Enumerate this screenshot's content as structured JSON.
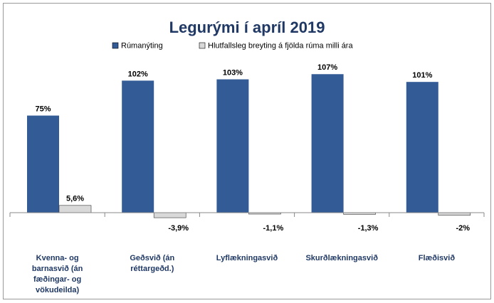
{
  "chart_data": {
    "type": "bar",
    "title": "Legurými  í  apríl 2019",
    "categories": [
      "Kvenna- og barnasvið  (án fæðingar- og vökudeilda)",
      "Geðsvið (án réttargeðd.)",
      "Lyflækningasvið",
      "Skurðlækningasvið",
      "Flæðisvið"
    ],
    "series": [
      {
        "name": "Rúmanýting",
        "color": "#335b96",
        "values": [
          75,
          102,
          103,
          107,
          101
        ],
        "value_labels": [
          "75%",
          "102%",
          "103%",
          "107%",
          "101%"
        ]
      },
      {
        "name": "Hlutfallsleg breyting á fjölda rúma milli ára",
        "color": "#d9d9d9",
        "values": [
          5.6,
          -3.9,
          -1.1,
          -1.3,
          -2
        ],
        "value_labels": [
          "5,6%",
          "-3,9%",
          "-1,1%",
          "-1,3%",
          "-2%"
        ]
      }
    ],
    "legend": "top"
  }
}
